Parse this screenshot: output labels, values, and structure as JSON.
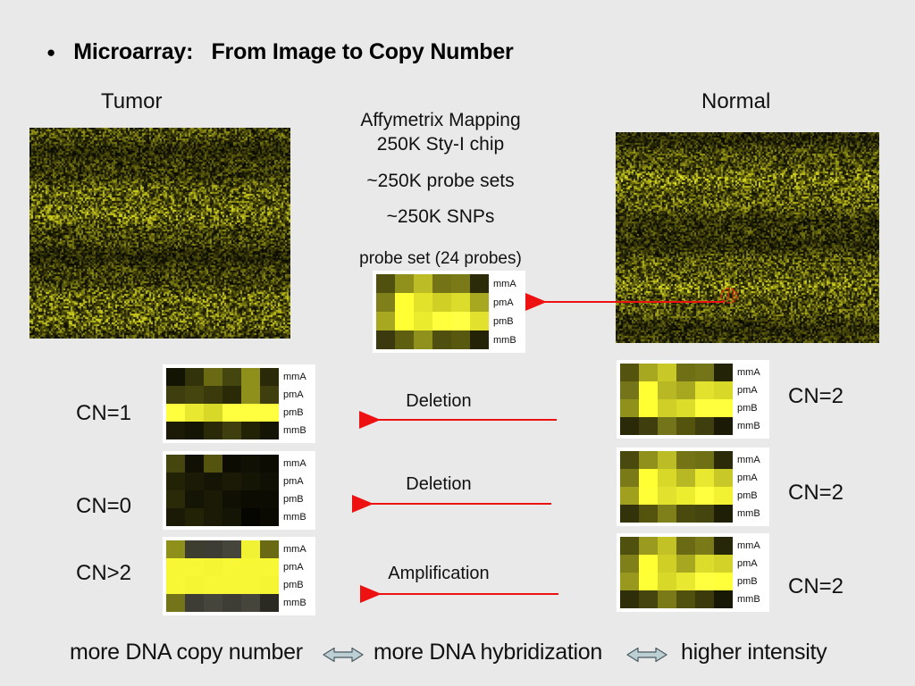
{
  "title": {
    "bullet": "●",
    "text": "Microarray:   From Image to Copy Number"
  },
  "columns": {
    "tumor_label": "Tumor",
    "normal_label": "Normal"
  },
  "center_info": {
    "line1": "Affymetrix Mapping",
    "line2": "250K Sty-I chip",
    "line3": "~250K probe sets",
    "line4": "~250K SNPs",
    "probe_set_caption": "probe set (24 probes)"
  },
  "heatmap_row_labels": [
    "mmA",
    "pmA",
    "pmB",
    "mmB"
  ],
  "heatmaps": {
    "probe_set": [
      [
        "#50500f",
        "#90901c",
        "#bcbc26",
        "#747416",
        "#7a7a18",
        "#2b2b09"
      ],
      [
        "#80801a",
        "#ffff33",
        "#e2e22b",
        "#cfcf26",
        "#dcdc2c",
        "#a8a820"
      ],
      [
        "#a8a820",
        "#ffff33",
        "#ebeb2e",
        "#ffff3d",
        "#ffff44",
        "#e2e22e"
      ],
      [
        "#3a3a0e",
        "#5f5f12",
        "#90901c",
        "#4f4f10",
        "#585810",
        "#232307"
      ]
    ],
    "cn1": [
      [
        "#141405",
        "#32320b",
        "#6a6a14",
        "#454510",
        "#8f8f1c",
        "#2a2a09"
      ],
      [
        "#3e3e0e",
        "#454510",
        "#3a3a0c",
        "#2a2a09",
        "#8f8f1c",
        "#3e3e0e"
      ],
      [
        "#ffff40",
        "#e8e830",
        "#d8d828",
        "#ffff40",
        "#ffff40",
        "#ffff40"
      ],
      [
        "#1a1a06",
        "#151505",
        "#2a2a09",
        "#3e3e0e",
        "#222207",
        "#151505"
      ]
    ],
    "cn0": [
      [
        "#454510",
        "#101004",
        "#54540f",
        "#0c0c03",
        "#101004",
        "#0c0c03"
      ],
      [
        "#222207",
        "#1a1a06",
        "#151505",
        "#1a1a06",
        "#151505",
        "#101004"
      ],
      [
        "#2a2a09",
        "#151505",
        "#1a1a06",
        "#101004",
        "#0c0c03",
        "#0c0c03"
      ],
      [
        "#1a1a06",
        "#222207",
        "#1a1a06",
        "#151505",
        "#050502",
        "#0a0a03"
      ]
    ],
    "cn_gt2": [
      [
        "#8f8f1c",
        "#3d3d30",
        "#3d3d35",
        "#45453c",
        "#f2f235",
        "#6a6a14"
      ],
      [
        "#f7f735",
        "#f7f735",
        "#f5f533",
        "#f7f735",
        "#f7f735",
        "#f7f735"
      ],
      [
        "#f7f735",
        "#f5f533",
        "#f7f735",
        "#f7f735",
        "#f7f735",
        "#f5f533"
      ],
      [
        "#74741a",
        "#3d3d35",
        "#45453c",
        "#3d3d35",
        "#45453c",
        "#2a2a22"
      ]
    ],
    "normal_1": [
      [
        "#54540f",
        "#a8a820",
        "#c8c828",
        "#6f6f16",
        "#747418",
        "#232307"
      ],
      [
        "#74741a",
        "#ffff33",
        "#b8b824",
        "#a8a820",
        "#e2e22e",
        "#d8d828"
      ],
      [
        "#90901c",
        "#ffff33",
        "#cfcf28",
        "#dcdc2a",
        "#ffff3d",
        "#ffff3d"
      ],
      [
        "#2a2a09",
        "#3e3e0e",
        "#74741a",
        "#54540f",
        "#3e3e0e",
        "#1a1a06"
      ]
    ],
    "normal_2": [
      [
        "#4a4a0e",
        "#90901c",
        "#bcbc26",
        "#747416",
        "#6f6f16",
        "#2b2b09"
      ],
      [
        "#7a7a18",
        "#ffff33",
        "#d8d828",
        "#b8b824",
        "#e8e830",
        "#c8c828"
      ],
      [
        "#a0a01e",
        "#ffff38",
        "#e2e22e",
        "#eded30",
        "#ffff40",
        "#f2f232"
      ],
      [
        "#32320b",
        "#54540f",
        "#80801a",
        "#4a4a0e",
        "#454510",
        "#1f1f07"
      ]
    ],
    "normal_3": [
      [
        "#50500f",
        "#9a9a1e",
        "#c2c226",
        "#6a6a14",
        "#7a7a18",
        "#262608"
      ],
      [
        "#80801a",
        "#ffff33",
        "#cfcf26",
        "#a8a820",
        "#dcdc2c",
        "#d2d228"
      ],
      [
        "#98981e",
        "#ffff36",
        "#d8d828",
        "#e8e830",
        "#ffff40",
        "#ffff3a"
      ],
      [
        "#2e2e0a",
        "#454510",
        "#7a7a18",
        "#50500f",
        "#3a3a0c",
        "#181806"
      ]
    ]
  },
  "left_labels": {
    "row1": "CN=1",
    "row2": "CN=0",
    "row3": "CN>2"
  },
  "right_labels": {
    "row1": "CN=2",
    "row2": "CN=2",
    "row3": "CN=2"
  },
  "middle_annotations": {
    "row1": "Deletion",
    "row2": "Deletion",
    "row3": "Amplification"
  },
  "bottom_banner": {
    "part1": "more DNA copy number",
    "part2": "more DNA hybridization",
    "part3": "higher intensity"
  },
  "colors": {
    "background": "#e9e9e9",
    "arrow_red": "#ee1111",
    "double_arrow_fill": "#bcd0d4",
    "double_arrow_stroke": "#4a5a60",
    "noise_base_olive": "#6b6b12"
  }
}
